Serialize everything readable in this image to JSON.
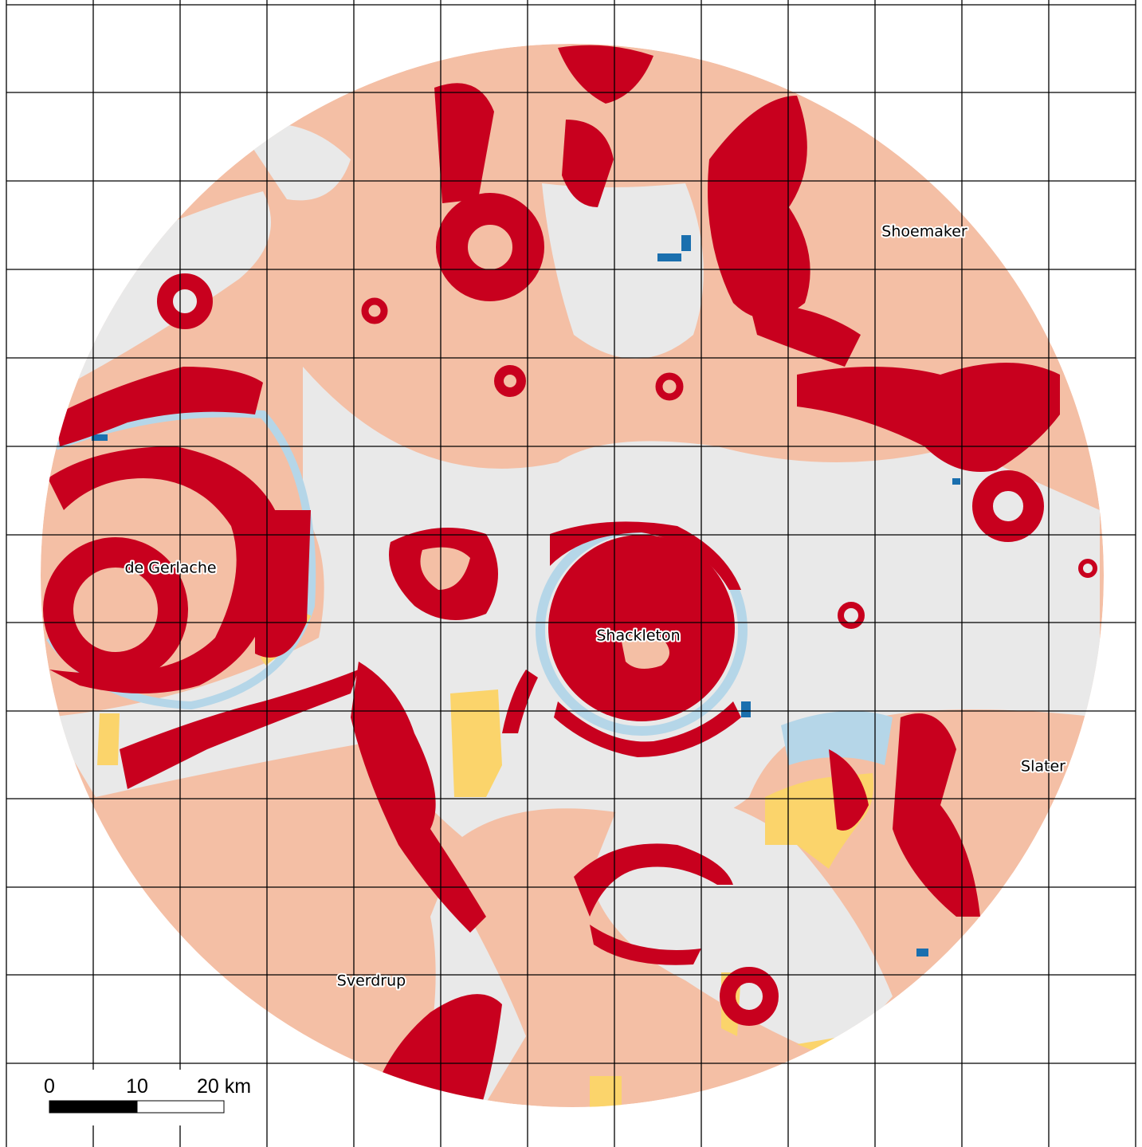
{
  "map": {
    "labels": [
      "Shoemaker",
      "de Gerlache",
      "Shackleton",
      "Slater",
      "Sverdrup"
    ],
    "scale_bar": {
      "labels": [
        "0",
        "10",
        "20 km"
      ]
    }
  }
}
